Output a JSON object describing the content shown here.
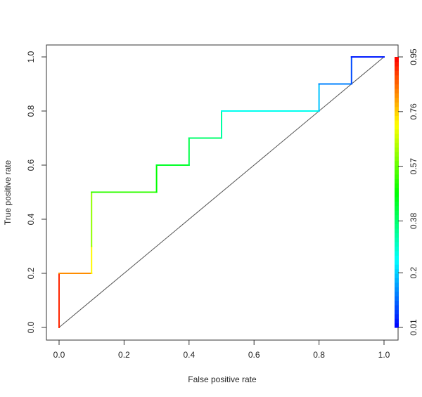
{
  "chart_data": {
    "type": "line",
    "title": "",
    "xlabel": "False positive rate",
    "ylabel": "True positive rate",
    "xlim": [
      0,
      1
    ],
    "ylim": [
      0,
      1
    ],
    "x_ticks": [
      "0.0",
      "0.2",
      "0.4",
      "0.6",
      "0.8",
      "1.0"
    ],
    "y_ticks": [
      "0.0",
      "0.2",
      "0.4",
      "0.6",
      "0.8",
      "1.0"
    ],
    "grid": false,
    "legend": "none",
    "series": [
      {
        "kind": "roc-step",
        "colored_by": "cutoff",
        "points": [
          {
            "x": 0.0,
            "y": 0.0,
            "cutoff": 0.95
          },
          {
            "x": 0.0,
            "y": 0.2,
            "cutoff": 0.88
          },
          {
            "x": 0.1,
            "y": 0.2,
            "cutoff": 0.76
          },
          {
            "x": 0.1,
            "y": 0.3,
            "cutoff": 0.68
          },
          {
            "x": 0.1,
            "y": 0.5,
            "cutoff": 0.55
          },
          {
            "x": 0.3,
            "y": 0.5,
            "cutoff": 0.5
          },
          {
            "x": 0.3,
            "y": 0.6,
            "cutoff": 0.46
          },
          {
            "x": 0.4,
            "y": 0.6,
            "cutoff": 0.43
          },
          {
            "x": 0.4,
            "y": 0.7,
            "cutoff": 0.4
          },
          {
            "x": 0.5,
            "y": 0.7,
            "cutoff": 0.36
          },
          {
            "x": 0.5,
            "y": 0.8,
            "cutoff": 0.3
          },
          {
            "x": 0.8,
            "y": 0.8,
            "cutoff": 0.22
          },
          {
            "x": 0.8,
            "y": 0.9,
            "cutoff": 0.16
          },
          {
            "x": 0.9,
            "y": 0.9,
            "cutoff": 0.1
          },
          {
            "x": 0.9,
            "y": 1.0,
            "cutoff": 0.06
          },
          {
            "x": 1.0,
            "y": 1.0,
            "cutoff": 0.01
          }
        ]
      },
      {
        "kind": "diagonal",
        "color": "#555555",
        "points": [
          {
            "x": 0,
            "y": 0
          },
          {
            "x": 1,
            "y": 1
          }
        ]
      }
    ],
    "colorbar": {
      "ticks": [
        "0.01",
        "0.2",
        "0.38",
        "0.57",
        "0.76",
        "0.95"
      ],
      "min": 0.01,
      "max": 0.95
    }
  }
}
